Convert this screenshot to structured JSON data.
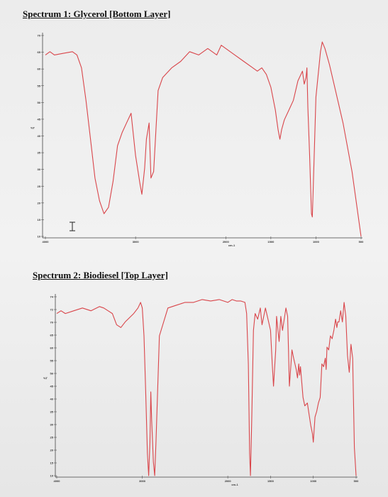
{
  "spectrum1": {
    "title": "Spectrum 1: Glycerol [Bottom Layer]"
  },
  "spectrum2": {
    "title": "Spectrum 2: Biodiesel [Top Layer]"
  },
  "colors": {
    "trace": "#d9454a",
    "axis": "#444444"
  },
  "chart_data": [
    {
      "type": "line",
      "title": "Spectrum 1: Glycerol [Bottom Layer]",
      "xlabel": "cm-1",
      "ylabel": "%T",
      "xlim": [
        4000,
        500
      ],
      "ylim": [
        10,
        72
      ],
      "xticks": [
        "4000",
        "3000",
        "2000",
        "1500",
        "1000",
        "500"
      ],
      "yticks": [
        "70",
        "65",
        "60",
        "55",
        "50",
        "45",
        "40",
        "35",
        "30",
        "25",
        "20",
        "15",
        "10"
      ],
      "series": [
        {
          "x": [
            4000,
            3950,
            3900,
            3800,
            3700,
            3650,
            3600,
            3550,
            3500,
            3450,
            3400,
            3350,
            3300,
            3250,
            3200,
            3150,
            3100,
            3050,
            3000,
            2950,
            2930,
            2900,
            2880,
            2850,
            2830,
            2800,
            2750,
            2700,
            2600,
            2500,
            2400,
            2300,
            2200,
            2100,
            2050,
            2000,
            1900,
            1800,
            1700,
            1650,
            1600,
            1550,
            1500,
            1450,
            1420,
            1400,
            1380,
            1350,
            1300,
            1250,
            1200,
            1150,
            1130,
            1110,
            1100,
            1090,
            1070,
            1050,
            1040,
            1030,
            1000,
            950,
            930,
            900,
            850,
            800,
            700,
            600,
            500
          ],
          "y": [
            66,
            67,
            66,
            66.5,
            67,
            66,
            62,
            52,
            40,
            28,
            21,
            17,
            19,
            27,
            38,
            42,
            45,
            48,
            35,
            26,
            23,
            31,
            40,
            45,
            28,
            30,
            55,
            59,
            62,
            64,
            67,
            66,
            68,
            66,
            69,
            68,
            66,
            64,
            62,
            61,
            62,
            60,
            56,
            49,
            43,
            40,
            43,
            46,
            49,
            52,
            58,
            61,
            57,
            59,
            62,
            50,
            35,
            17,
            16,
            25,
            53,
            67,
            70,
            68,
            63,
            57,
            45,
            30,
            10
          ]
        }
      ]
    },
    {
      "type": "line",
      "title": "Spectrum 2: Biodiesel [Top Layer]",
      "xlabel": "cm-1",
      "ylabel": "%T",
      "xlim": [
        4000,
        500
      ],
      "ylim": [
        10,
        74
      ],
      "xticks": [
        "4000",
        "3000",
        "2000",
        "1500",
        "1000",
        "500"
      ],
      "yticks": [
        "74",
        "72",
        "70",
        "65",
        "60",
        "55",
        "50",
        "45",
        "40",
        "35",
        "30",
        "25",
        "20",
        "15",
        "10"
      ],
      "series": [
        {
          "x": [
            4000,
            3950,
            3900,
            3800,
            3700,
            3600,
            3500,
            3450,
            3400,
            3350,
            3300,
            3250,
            3200,
            3100,
            3050,
            3020,
            3010,
            3000,
            2980,
            2960,
            2940,
            2925,
            2910,
            2900,
            2890,
            2870,
            2855,
            2840,
            2800,
            2700,
            2600,
            2500,
            2400,
            2300,
            2200,
            2100,
            2000,
            1950,
            1900,
            1850,
            1800,
            1780,
            1760,
            1745,
            1735,
            1720,
            1700,
            1680,
            1650,
            1620,
            1600,
            1560,
            1500,
            1480,
            1465,
            1440,
            1430,
            1400,
            1380,
            1360,
            1320,
            1300,
            1280,
            1250,
            1230,
            1200,
            1185,
            1170,
            1160,
            1150,
            1120,
            1100,
            1070,
            1050,
            1030,
            1010,
            1000,
            980,
            960,
            940,
            920,
            900,
            880,
            860,
            850,
            840,
            820,
            800,
            780,
            760,
            740,
            725,
            715,
            700,
            680,
            660,
            640,
            620,
            600,
            580,
            560,
            540,
            520,
            500
          ],
          "y": [
            68,
            69,
            68,
            69,
            70,
            69,
            70.5,
            70,
            69,
            68,
            64,
            63,
            65,
            68,
            70,
            72,
            71,
            70,
            60,
            40,
            18,
            10,
            22,
            40,
            30,
            15,
            10,
            22,
            60,
            70,
            71,
            72,
            72,
            73,
            72.5,
            73,
            72,
            73,
            72.5,
            72.5,
            72,
            68,
            50,
            18,
            10,
            30,
            62,
            68,
            66,
            70,
            64,
            70,
            62,
            50,
            42,
            55,
            67,
            58,
            67,
            62,
            70,
            67,
            42,
            55,
            52,
            48,
            45,
            50,
            46,
            49,
            38,
            35,
            36,
            32,
            28,
            25,
            22,
            31,
            33,
            36,
            38,
            50,
            49,
            52,
            48,
            56,
            55,
            60,
            59,
            62,
            66,
            63,
            65,
            65,
            69,
            65,
            72,
            67,
            53,
            47,
            57,
            52,
            20,
            10
          ]
        }
      ]
    }
  ]
}
